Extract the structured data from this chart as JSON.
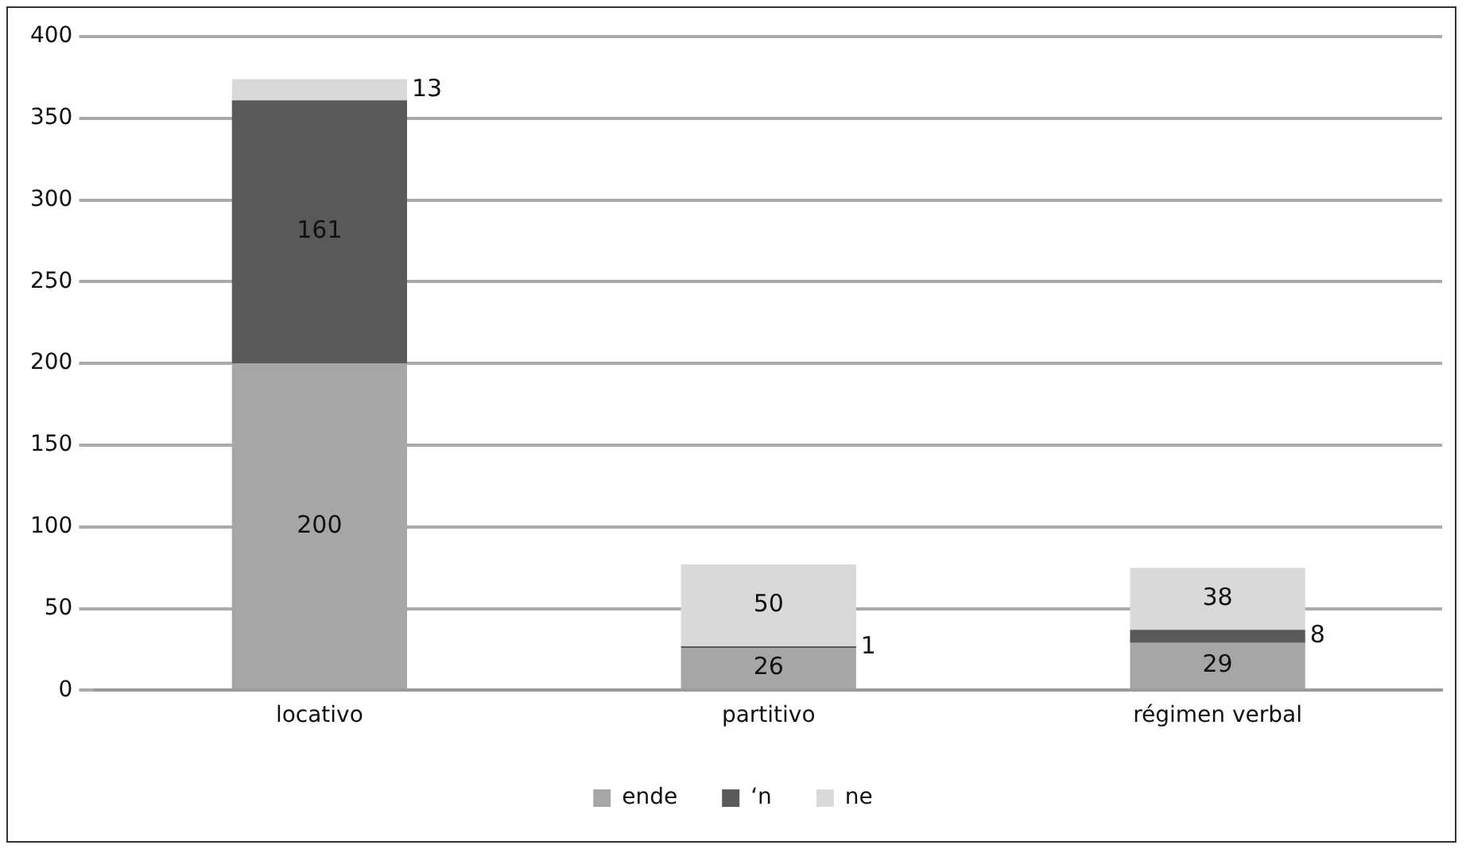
{
  "chart_data": {
    "type": "bar",
    "stacked": true,
    "categories": [
      "locativo",
      "partitivo",
      "régimen verbal"
    ],
    "series": [
      {
        "name": "ende",
        "color": "#a6a6a6",
        "values": [
          200,
          26,
          29
        ]
      },
      {
        "name": "‘n",
        "color": "#595959",
        "values": [
          161,
          1,
          8
        ]
      },
      {
        "name": "ne",
        "color": "#d9d9d9",
        "values": [
          13,
          50,
          38
        ]
      }
    ],
    "ylim": [
      0,
      400
    ],
    "yticks": [
      0,
      50,
      100,
      150,
      200,
      250,
      300,
      350,
      400
    ],
    "grid": "y",
    "legend": "bottom",
    "data_labels": true
  }
}
